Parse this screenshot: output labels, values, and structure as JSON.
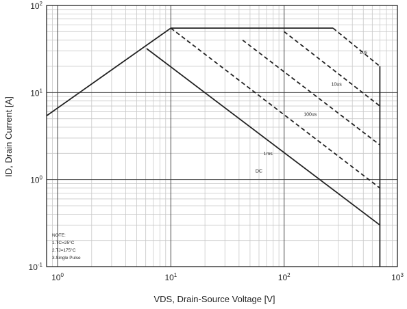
{
  "chart_data": {
    "type": "line",
    "xscale": "log",
    "yscale": "log",
    "xlim": [
      0.8,
      1000
    ],
    "ylim": [
      0.1,
      100
    ],
    "grid": true,
    "xlabel": "VDS, Drain-Source Voltage [V]",
    "ylabel": "ID, Drain Current [A]",
    "x_ticks": [
      {
        "value": 1,
        "base": "10",
        "exp": "0"
      },
      {
        "value": 10,
        "base": "10",
        "exp": "1"
      },
      {
        "value": 100,
        "base": "10",
        "exp": "2"
      },
      {
        "value": 1000,
        "base": "10",
        "exp": "3"
      }
    ],
    "y_ticks": [
      {
        "value": 0.1,
        "base": "10",
        "exp": "-1"
      },
      {
        "value": 1,
        "base": "10",
        "exp": "0"
      },
      {
        "value": 10,
        "base": "10",
        "exp": "1"
      },
      {
        "value": 100,
        "base": "10",
        "exp": "2"
      }
    ],
    "series": [
      {
        "name": "",
        "style": "solid",
        "points": [
          [
            0.8,
            5.4
          ],
          [
            10,
            55
          ],
          [
            270,
            55
          ]
        ]
      },
      {
        "name": "DC",
        "style": "solid",
        "points": [
          [
            6.1,
            32
          ],
          [
            700,
            0.3
          ]
        ]
      },
      {
        "name": "1ms",
        "style": "dashed",
        "points": [
          [
            10,
            55
          ],
          [
            700,
            0.8
          ]
        ]
      },
      {
        "name": "100us",
        "style": "dashed",
        "points": [
          [
            43,
            40
          ],
          [
            700,
            2.5
          ]
        ]
      },
      {
        "name": "10us",
        "style": "dashed",
        "points": [
          [
            100,
            50
          ],
          [
            700,
            7
          ]
        ]
      },
      {
        "name": "1us",
        "style": "dashed",
        "points": [
          [
            270,
            55
          ],
          [
            700,
            20
          ]
        ]
      },
      {
        "name": "",
        "style": "solid",
        "points": [
          [
            700,
            20
          ],
          [
            700,
            0.1
          ]
        ]
      }
    ],
    "series_labels": [
      {
        "text": "1us",
        "at": [
          500,
          28
        ]
      },
      {
        "text": "10us",
        "at": [
          290,
          12
        ]
      },
      {
        "text": "100us",
        "at": [
          170,
          5.4
        ]
      },
      {
        "text": "1ms",
        "at": [
          72,
          1.9
        ]
      },
      {
        "text": "DC",
        "at": [
          60,
          1.2
        ]
      }
    ],
    "note": [
      "NOTE:",
      "1.TC=25°C",
      "2.TJ=175°C",
      "3.Single Pulse"
    ]
  }
}
